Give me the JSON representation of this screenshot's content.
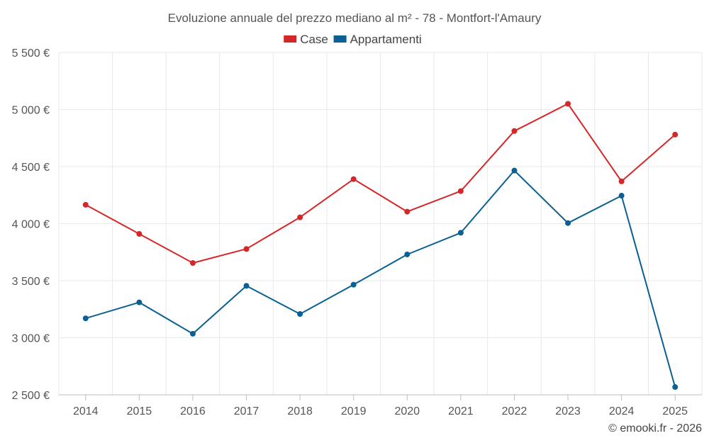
{
  "chart_data": {
    "type": "line",
    "title": "Evoluzione annuale del prezzo mediano al m² - 78 - Montfort-l'Amaury",
    "categories": [
      "2014",
      "2015",
      "2016",
      "2017",
      "2018",
      "2019",
      "2020",
      "2021",
      "2022",
      "2023",
      "2024",
      "2025"
    ],
    "series": [
      {
        "name": "Case",
        "color": "#d62728",
        "values": [
          4165,
          3910,
          3655,
          3778,
          4055,
          4390,
          4105,
          4285,
          4812,
          5050,
          4370,
          4780
        ]
      },
      {
        "name": "Appartamenti",
        "color": "#0a5f93",
        "values": [
          3170,
          3310,
          3035,
          3455,
          3208,
          3465,
          3730,
          3920,
          4465,
          4005,
          4245,
          2568
        ]
      }
    ],
    "ylim": [
      2500,
      5500
    ],
    "yticks": [
      2500,
      3000,
      3500,
      4000,
      4500,
      5000,
      5500
    ],
    "ytick_labels": [
      "2 500 €",
      "3 000 €",
      "3 500 €",
      "4 000 €",
      "4 500 €",
      "5 000 €",
      "5 500 €"
    ],
    "grid": true,
    "legend_position": "top-center",
    "xlabel": "",
    "ylabel": ""
  },
  "credit": "© emooki.fr - 2026"
}
